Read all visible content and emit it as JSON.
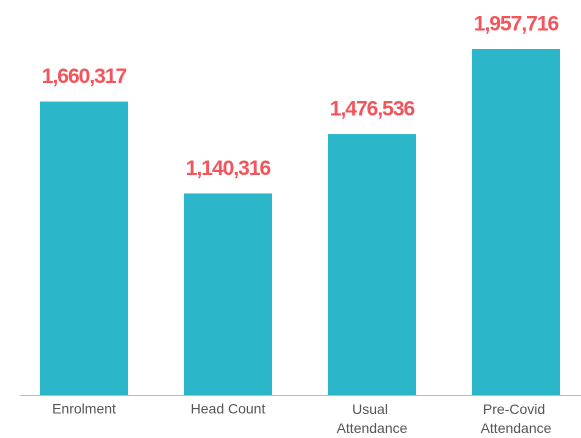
{
  "chart_data": {
    "type": "bar",
    "categories": [
      "Enrolment",
      "Head Count",
      "Usual Attendance",
      "Pre-Covid Attendance"
    ],
    "values": [
      1660317,
      1140316,
      1476536,
      1957716
    ],
    "value_labels": [
      "1,660,317",
      "1,140,316",
      "1,476,536",
      "1,957,716"
    ],
    "color": "#2bb7c9"
  }
}
